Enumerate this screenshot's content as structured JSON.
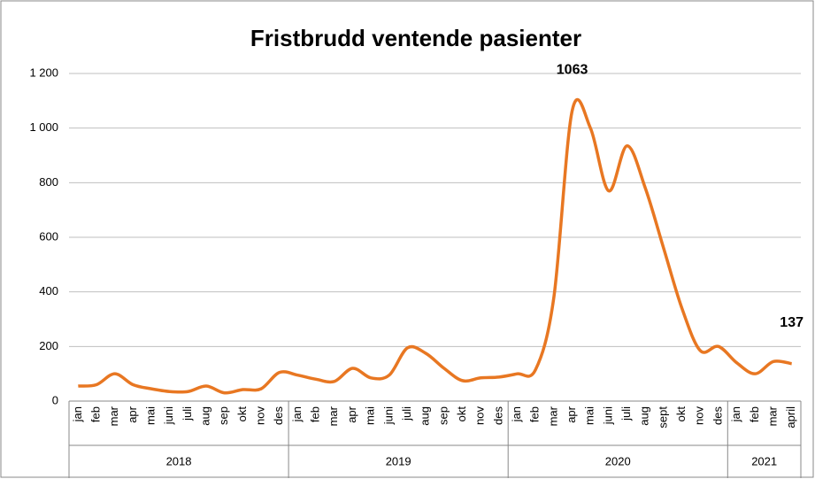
{
  "chart_data": {
    "type": "line",
    "title": "Fristbrudd ventende pasienter",
    "category_groups": [
      {
        "label": "2018",
        "categories": [
          "jan",
          "feb",
          "mar",
          "apr",
          "mai",
          "juni",
          "juli",
          "aug",
          "sep",
          "okt",
          "nov",
          "des"
        ]
      },
      {
        "label": "2019",
        "categories": [
          "jan",
          "feb",
          "mar",
          "apr",
          "mai",
          "juni",
          "juli",
          "aug",
          "sep",
          "okt",
          "nov",
          "des"
        ]
      },
      {
        "label": "2020",
        "categories": [
          "jan",
          "feb",
          "mar",
          "apr",
          "mai",
          "juni",
          "juli",
          "aug",
          "sept",
          "okt",
          "nov",
          "des"
        ]
      },
      {
        "label": "2021",
        "categories": [
          "jan",
          "feb",
          "mar",
          "april"
        ]
      }
    ],
    "color": "#e87722",
    "values": [
      55,
      60,
      100,
      60,
      45,
      35,
      35,
      55,
      30,
      42,
      45,
      105,
      95,
      80,
      72,
      120,
      85,
      95,
      195,
      175,
      120,
      75,
      85,
      88,
      100,
      115,
      380,
      1063,
      1000,
      770,
      935,
      780,
      560,
      340,
      185,
      200,
      140,
      100,
      145,
      137
    ],
    "value_labels": [
      null,
      null,
      null,
      null,
      null,
      null,
      null,
      null,
      null,
      null,
      null,
      null,
      null,
      null,
      null,
      null,
      null,
      null,
      null,
      null,
      null,
      null,
      null,
      null,
      null,
      null,
      null,
      "1063",
      null,
      null,
      null,
      null,
      null,
      null,
      null,
      null,
      null,
      null,
      null,
      "137"
    ],
    "ylim": [
      0,
      1200
    ],
    "yticks": [
      0,
      200,
      400,
      600,
      800,
      {
        "value": 1000,
        "label": "1 000"
      },
      {
        "value": 1200,
        "label": "1 200"
      }
    ],
    "grid": true
  }
}
